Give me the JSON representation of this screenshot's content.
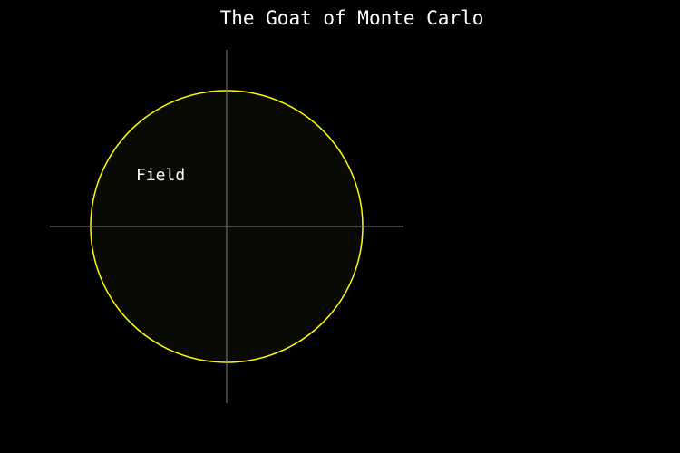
{
  "title": "The Goat of Monte Carlo",
  "field": {
    "label": "Field"
  },
  "colors": {
    "background": "#000000",
    "title_text": "#ffffff",
    "field_outline": "#ffff00",
    "field_fill": "#0a0a05",
    "axes": "#808080",
    "label_text": "#ffffff"
  }
}
